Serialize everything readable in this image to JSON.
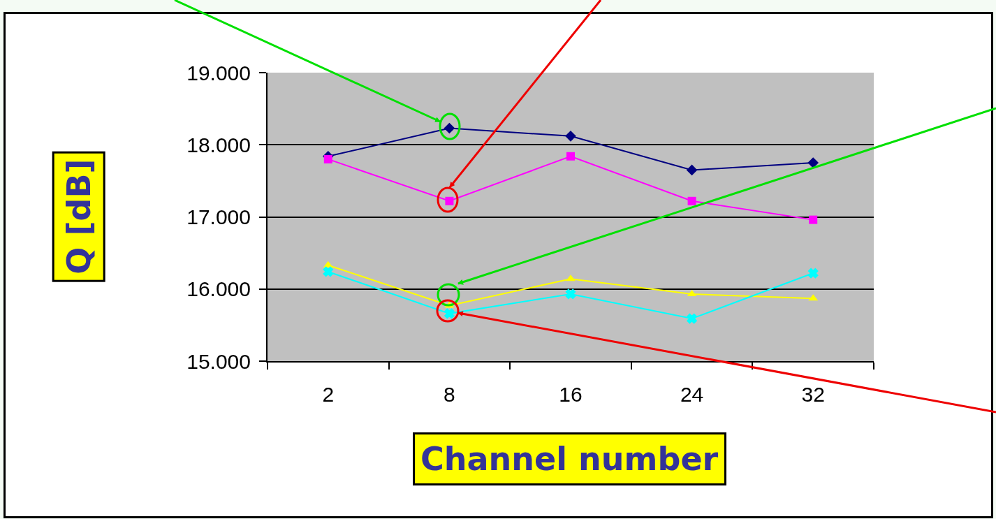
{
  "chart_data": {
    "type": "line",
    "xlabel": "Channel number",
    "ylabel": "Q [dB]",
    "categories": [
      "2",
      "8",
      "16",
      "24",
      "32"
    ],
    "series": [
      {
        "color": "#000080",
        "marker": "diamond",
        "values": [
          17.84,
          18.23,
          18.12,
          17.65,
          17.75
        ]
      },
      {
        "color": "#ff00ff",
        "marker": "square",
        "values": [
          17.8,
          17.22,
          17.84,
          17.22,
          16.96
        ]
      },
      {
        "color": "#ffff00",
        "marker": "triangle",
        "values": [
          16.33,
          15.77,
          16.14,
          15.93,
          15.87
        ]
      },
      {
        "color": "#00ffff",
        "marker": "cross",
        "values": [
          16.24,
          15.66,
          15.93,
          15.59,
          16.22
        ]
      }
    ],
    "ylim": [
      15,
      19
    ],
    "yticks": [
      {
        "value": 15,
        "label": "15.000"
      },
      {
        "value": 16,
        "label": "16.000"
      },
      {
        "value": 17,
        "label": "17.000"
      },
      {
        "value": 18,
        "label": "18.000"
      },
      {
        "value": 19,
        "label": "19.000"
      }
    ],
    "grid": "y",
    "legend": false
  }
}
